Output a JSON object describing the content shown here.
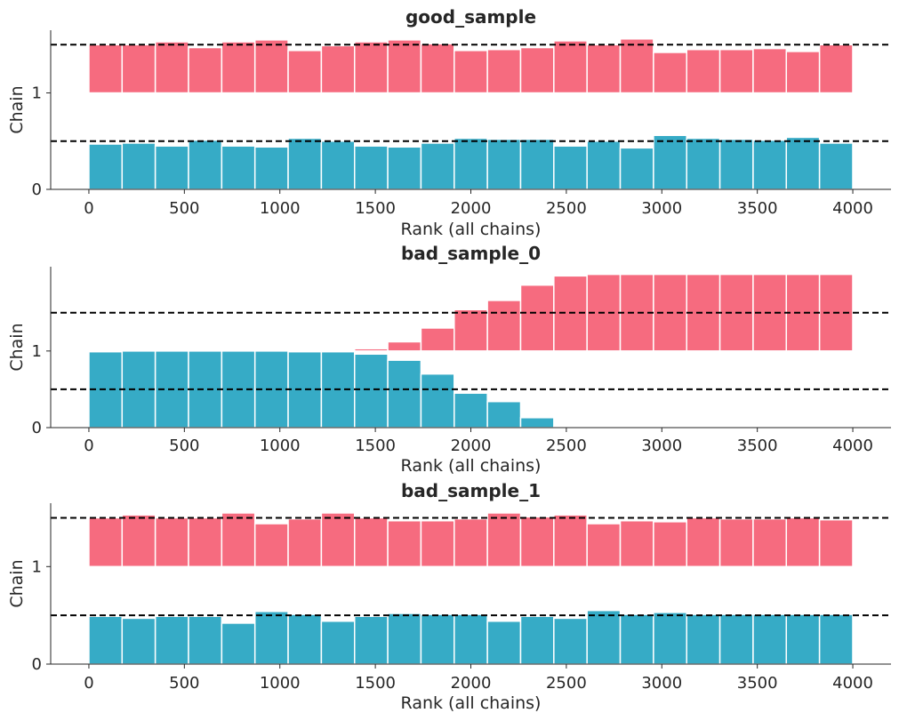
{
  "colors": {
    "chain_0": "#36abc6",
    "chain_1": "#f66b7f",
    "axis": "#262626",
    "reference": "#000000"
  },
  "chart_data": [
    {
      "type": "bar",
      "title": "good_sample",
      "xlabel": "Rank (all chains)",
      "ylabel": "Chain",
      "xlim": [
        -200,
        4200
      ],
      "ylim": [
        0,
        1.65
      ],
      "xticks": [
        "0",
        "500",
        "1000",
        "1500",
        "2000",
        "2500",
        "3000",
        "3500",
        "4000"
      ],
      "yticks": [
        "0",
        "1"
      ],
      "bins": {
        "start": 0,
        "width": 173.9,
        "count": 23
      },
      "reference_lines": [
        0.5,
        1.5
      ],
      "series": [
        {
          "offset": 0,
          "values": [
            0.47,
            0.48,
            0.45,
            0.51,
            0.45,
            0.44,
            0.53,
            0.5,
            0.45,
            0.44,
            0.48,
            0.53,
            0.52,
            0.52,
            0.45,
            0.5,
            0.43,
            0.56,
            0.53,
            0.52,
            0.51,
            0.54,
            0.48
          ]
        },
        {
          "offset": 1,
          "values": [
            0.5,
            0.5,
            0.53,
            0.47,
            0.53,
            0.55,
            0.44,
            0.49,
            0.53,
            0.55,
            0.51,
            0.44,
            0.45,
            0.47,
            0.54,
            0.5,
            0.56,
            0.42,
            0.45,
            0.45,
            0.46,
            0.43,
            0.5
          ]
        }
      ]
    },
    {
      "type": "bar",
      "title": "bad_sample_0",
      "xlabel": "Rank (all chains)",
      "ylabel": "Chain",
      "xlim": [
        -200,
        4200
      ],
      "ylim": [
        0,
        2.1
      ],
      "xticks": [
        "0",
        "500",
        "1000",
        "1500",
        "2000",
        "2500",
        "3000",
        "3500",
        "4000"
      ],
      "yticks": [
        "0",
        "1"
      ],
      "bins": {
        "start": 0,
        "width": 173.9,
        "count": 23
      },
      "reference_lines": [
        0.5,
        1.5
      ],
      "series": [
        {
          "offset": 0,
          "values": [
            0.99,
            1.0,
            1.0,
            1.0,
            1.0,
            1.0,
            0.99,
            0.99,
            0.96,
            0.88,
            0.7,
            0.45,
            0.34,
            0.13,
            0.01,
            0,
            0,
            0,
            0,
            0,
            0,
            0,
            0
          ]
        },
        {
          "offset": 1,
          "values": [
            0,
            0,
            0,
            0,
            0,
            0,
            0,
            0,
            0.03,
            0.12,
            0.3,
            0.54,
            0.66,
            0.86,
            0.98,
            1.0,
            1.0,
            1.0,
            1.0,
            1.0,
            1.0,
            1.0,
            1.0
          ]
        }
      ]
    },
    {
      "type": "bar",
      "title": "bad_sample_1",
      "xlabel": "Rank (all chains)",
      "ylabel": "Chain",
      "xlim": [
        -200,
        4200
      ],
      "ylim": [
        0,
        1.65
      ],
      "xticks": [
        "0",
        "500",
        "1000",
        "1500",
        "2000",
        "2500",
        "3000",
        "3500",
        "4000"
      ],
      "yticks": [
        "0",
        "1"
      ],
      "bins": {
        "start": 0,
        "width": 173.9,
        "count": 23
      },
      "reference_lines": [
        0.5,
        1.5
      ],
      "series": [
        {
          "offset": 0,
          "values": [
            0.49,
            0.47,
            0.49,
            0.49,
            0.42,
            0.54,
            0.51,
            0.44,
            0.49,
            0.52,
            0.51,
            0.51,
            0.44,
            0.49,
            0.47,
            0.55,
            0.51,
            0.53,
            0.51,
            0.51,
            0.51,
            0.51,
            0.51
          ]
        },
        {
          "offset": 1,
          "values": [
            0.5,
            0.53,
            0.5,
            0.5,
            0.55,
            0.44,
            0.49,
            0.55,
            0.5,
            0.47,
            0.47,
            0.49,
            0.55,
            0.51,
            0.53,
            0.44,
            0.47,
            0.46,
            0.5,
            0.49,
            0.49,
            0.5,
            0.48
          ]
        }
      ]
    }
  ]
}
